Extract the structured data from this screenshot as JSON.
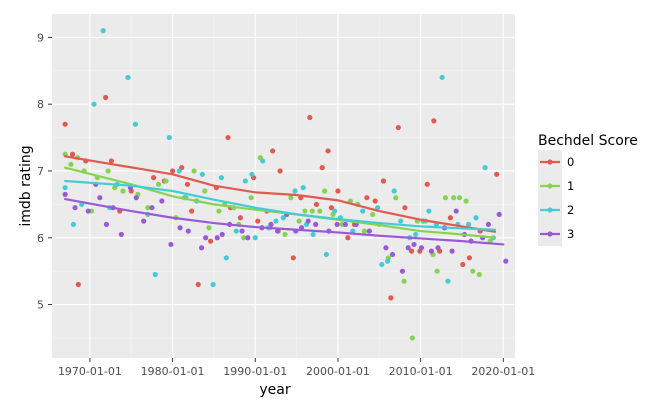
{
  "chart_data": {
    "type": "scatter",
    "xlabel": "year",
    "ylabel": "imdb rating",
    "x_range": [
      "1965-06-01",
      "2021-06-01"
    ],
    "ylim": [
      4.2,
      9.35
    ],
    "x_ticks": [
      {
        "date": "1970-01-01",
        "label": "1970-01-01"
      },
      {
        "date": "1980-01-01",
        "label": "1980-01-01"
      },
      {
        "date": "1990-01-01",
        "label": "1990-01-01"
      },
      {
        "date": "2000-01-01",
        "label": "2000-01-01"
      },
      {
        "date": "2010-01-01",
        "label": "2010-01-01"
      },
      {
        "date": "2020-01-01",
        "label": "2020-01-01"
      }
    ],
    "y_ticks": [
      5,
      6,
      7,
      8,
      9
    ],
    "grid": true,
    "legend": {
      "title": "Bechdel Score",
      "placement": "right"
    },
    "series": [
      {
        "name": "0",
        "color": "#e05a4f",
        "trend": [
          [
            1967.0,
            7.22
          ],
          [
            1980,
            6.95
          ],
          [
            1985,
            6.78
          ],
          [
            1990,
            6.68
          ],
          [
            1995,
            6.64
          ],
          [
            2000,
            6.56
          ],
          [
            2005,
            6.4
          ],
          [
            2010,
            6.27
          ],
          [
            2015,
            6.17
          ],
          [
            2019.0,
            6.09
          ]
        ],
        "points": [
          [
            1967.0,
            7.7
          ],
          [
            1967.9,
            7.25
          ],
          [
            1968.6,
            5.3
          ],
          [
            1969.5,
            7.15
          ],
          [
            1971.9,
            8.1
          ],
          [
            1972.6,
            7.15
          ],
          [
            1973.6,
            6.4
          ],
          [
            1975.0,
            6.7
          ],
          [
            1977.7,
            6.9
          ],
          [
            1979.0,
            6.85
          ],
          [
            1980.0,
            7.0
          ],
          [
            1981.1,
            7.05
          ],
          [
            1981.8,
            6.8
          ],
          [
            1982.3,
            6.4
          ],
          [
            1983.1,
            5.3
          ],
          [
            1984.6,
            5.95
          ],
          [
            1985.3,
            6.75
          ],
          [
            1986.7,
            7.5
          ],
          [
            1987.0,
            6.45
          ],
          [
            1988.2,
            6.3
          ],
          [
            1989.8,
            6.9
          ],
          [
            1990.3,
            6.25
          ],
          [
            1991.4,
            6.4
          ],
          [
            1992.1,
            7.3
          ],
          [
            1993.0,
            7.0
          ],
          [
            1994.6,
            5.7
          ],
          [
            1995.5,
            6.6
          ],
          [
            1996.6,
            7.8
          ],
          [
            1997.4,
            6.5
          ],
          [
            1998.1,
            7.05
          ],
          [
            1998.8,
            7.3
          ],
          [
            1999.2,
            6.45
          ],
          [
            2000.0,
            6.7
          ],
          [
            2001.2,
            6.0
          ],
          [
            2002.0,
            6.2
          ],
          [
            2003.5,
            6.6
          ],
          [
            2004.5,
            6.55
          ],
          [
            2005.5,
            6.85
          ],
          [
            2006.4,
            5.1
          ],
          [
            2007.3,
            7.65
          ],
          [
            2008.1,
            6.45
          ],
          [
            2008.9,
            5.8
          ],
          [
            2009.9,
            5.8
          ],
          [
            2010.8,
            6.8
          ],
          [
            2011.6,
            7.75
          ],
          [
            2012.3,
            5.8
          ],
          [
            2013.6,
            6.3
          ],
          [
            2015.1,
            5.6
          ],
          [
            2015.9,
            5.7
          ],
          [
            2017.2,
            6.1
          ],
          [
            2019.2,
            6.95
          ]
        ]
      },
      {
        "name": "1",
        "color": "#86d352",
        "trend": [
          [
            1967.0,
            7.05
          ],
          [
            1975,
            6.8
          ],
          [
            1980,
            6.62
          ],
          [
            1985,
            6.5
          ],
          [
            1990,
            6.42
          ],
          [
            1995,
            6.35
          ],
          [
            2000,
            6.27
          ],
          [
            2005,
            6.19
          ],
          [
            2010,
            6.1
          ],
          [
            2015,
            6.05
          ],
          [
            2019.0,
            6.0
          ]
        ],
        "points": [
          [
            1967.0,
            7.25
          ],
          [
            1967.7,
            7.1
          ],
          [
            1968.5,
            7.2
          ],
          [
            1969.3,
            7.0
          ],
          [
            1970.2,
            6.4
          ],
          [
            1970.9,
            6.9
          ],
          [
            1972.2,
            7.0
          ],
          [
            1973.0,
            6.75
          ],
          [
            1974.0,
            6.7
          ],
          [
            1975.8,
            6.65
          ],
          [
            1977.0,
            6.45
          ],
          [
            1978.3,
            6.8
          ],
          [
            1979.2,
            6.85
          ],
          [
            1980.4,
            6.3
          ],
          [
            1981.4,
            6.6
          ],
          [
            1982.6,
            7.0
          ],
          [
            1983.9,
            6.7
          ],
          [
            1984.4,
            6.15
          ],
          [
            1985.6,
            6.4
          ],
          [
            1986.3,
            6.5
          ],
          [
            1987.4,
            6.45
          ],
          [
            1988.0,
            6.2
          ],
          [
            1988.6,
            6.0
          ],
          [
            1989.5,
            6.6
          ],
          [
            1990.6,
            7.2
          ],
          [
            1991.8,
            6.15
          ],
          [
            1992.8,
            6.1
          ],
          [
            1993.6,
            6.05
          ],
          [
            1994.3,
            6.6
          ],
          [
            1995.3,
            6.25
          ],
          [
            1996.0,
            6.4
          ],
          [
            1996.9,
            6.4
          ],
          [
            1997.8,
            6.4
          ],
          [
            1998.4,
            6.7
          ],
          [
            1999.4,
            6.35
          ],
          [
            2000.5,
            6.2
          ],
          [
            2001.5,
            6.55
          ],
          [
            2002.4,
            6.5
          ],
          [
            2003.2,
            6.1
          ],
          [
            2004.2,
            6.35
          ],
          [
            2005.0,
            6.2
          ],
          [
            2006.1,
            5.7
          ],
          [
            2007.0,
            6.6
          ],
          [
            2008.0,
            5.35
          ],
          [
            2009.0,
            4.5
          ],
          [
            2009.6,
            6.25
          ],
          [
            2010.6,
            6.25
          ],
          [
            2011.5,
            5.75
          ],
          [
            2012.0,
            5.5
          ],
          [
            2013.0,
            6.6
          ],
          [
            2014.0,
            6.6
          ],
          [
            2014.7,
            6.6
          ],
          [
            2015.5,
            6.55
          ],
          [
            2016.3,
            5.5
          ],
          [
            2017.1,
            5.45
          ],
          [
            2018.4,
            5.95
          ]
        ]
      },
      {
        "name": "2",
        "color": "#46cbd4",
        "trend": [
          [
            1967.0,
            6.85
          ],
          [
            1975,
            6.78
          ],
          [
            1980,
            6.7
          ],
          [
            1985,
            6.57
          ],
          [
            1990,
            6.45
          ],
          [
            1995,
            6.35
          ],
          [
            2000,
            6.28
          ],
          [
            2005,
            6.22
          ],
          [
            2010,
            6.17
          ],
          [
            2015,
            6.14
          ],
          [
            2019.0,
            6.12
          ]
        ],
        "points": [
          [
            1967.0,
            6.75
          ],
          [
            1968.0,
            6.2
          ],
          [
            1969.0,
            6.5
          ],
          [
            1970.5,
            8.0
          ],
          [
            1971.6,
            9.1
          ],
          [
            1972.4,
            6.45
          ],
          [
            1973.3,
            6.8
          ],
          [
            1974.6,
            8.4
          ],
          [
            1975.5,
            7.7
          ],
          [
            1977.0,
            6.35
          ],
          [
            1977.9,
            5.45
          ],
          [
            1979.6,
            7.5
          ],
          [
            1980.8,
            7.0
          ],
          [
            1981.6,
            6.6
          ],
          [
            1982.9,
            6.55
          ],
          [
            1983.6,
            6.95
          ],
          [
            1984.9,
            5.3
          ],
          [
            1985.9,
            6.9
          ],
          [
            1986.5,
            5.7
          ],
          [
            1987.7,
            6.1
          ],
          [
            1988.8,
            6.85
          ],
          [
            1989.6,
            6.95
          ],
          [
            1990.0,
            6.0
          ],
          [
            1990.9,
            7.15
          ],
          [
            1991.6,
            6.15
          ],
          [
            1992.5,
            6.25
          ],
          [
            1993.4,
            6.3
          ],
          [
            1994.8,
            6.7
          ],
          [
            1995.8,
            6.75
          ],
          [
            1996.2,
            6.2
          ],
          [
            1997.0,
            6.05
          ],
          [
            1998.6,
            5.75
          ],
          [
            1999.6,
            6.4
          ],
          [
            2000.3,
            6.3
          ],
          [
            2001.8,
            6.1
          ],
          [
            2003.0,
            6.4
          ],
          [
            2004.8,
            6.45
          ],
          [
            2005.3,
            5.6
          ],
          [
            2006.0,
            5.65
          ],
          [
            2006.8,
            6.7
          ],
          [
            2007.6,
            6.25
          ],
          [
            2008.7,
            6.0
          ],
          [
            2009.4,
            6.05
          ],
          [
            2010.3,
            6.25
          ],
          [
            2011.0,
            6.4
          ],
          [
            2011.9,
            6.2
          ],
          [
            2012.6,
            8.4
          ],
          [
            2013.3,
            5.35
          ],
          [
            2014.5,
            6.2
          ],
          [
            2015.8,
            6.2
          ],
          [
            2016.7,
            6.3
          ],
          [
            2017.8,
            7.05
          ],
          [
            2018.8,
            6.0
          ]
        ]
      },
      {
        "name": "3",
        "color": "#9b59d6",
        "trend": [
          [
            1967.0,
            6.58
          ],
          [
            1975,
            6.4
          ],
          [
            1980,
            6.3
          ],
          [
            1985,
            6.22
          ],
          [
            1990,
            6.16
          ],
          [
            1995,
            6.12
          ],
          [
            2000,
            6.08
          ],
          [
            2005,
            6.03
          ],
          [
            2010,
            5.99
          ],
          [
            2015,
            5.95
          ],
          [
            2020.0,
            5.9
          ]
        ],
        "points": [
          [
            1967.0,
            6.65
          ],
          [
            1968.2,
            6.45
          ],
          [
            1969.8,
            6.4
          ],
          [
            1970.7,
            6.8
          ],
          [
            1971.2,
            6.6
          ],
          [
            1972.0,
            6.2
          ],
          [
            1972.8,
            6.45
          ],
          [
            1973.8,
            6.05
          ],
          [
            1974.9,
            6.75
          ],
          [
            1975.6,
            6.6
          ],
          [
            1976.5,
            6.25
          ],
          [
            1977.5,
            6.45
          ],
          [
            1978.7,
            6.55
          ],
          [
            1979.8,
            5.9
          ],
          [
            1980.9,
            6.15
          ],
          [
            1981.9,
            6.1
          ],
          [
            1983.5,
            5.85
          ],
          [
            1984.0,
            6.0
          ],
          [
            1985.4,
            6.0
          ],
          [
            1986.0,
            6.05
          ],
          [
            1986.9,
            6.2
          ],
          [
            1988.4,
            6.1
          ],
          [
            1989.1,
            6.0
          ],
          [
            1990.8,
            6.15
          ],
          [
            1991.9,
            6.2
          ],
          [
            1992.7,
            6.1
          ],
          [
            1993.8,
            6.35
          ],
          [
            1994.9,
            6.1
          ],
          [
            1995.6,
            6.15
          ],
          [
            1996.4,
            6.25
          ],
          [
            1997.3,
            6.2
          ],
          [
            1998.9,
            6.1
          ],
          [
            1999.9,
            6.2
          ],
          [
            2000.9,
            6.2
          ],
          [
            2002.2,
            6.2
          ],
          [
            2003.8,
            6.1
          ],
          [
            2005.8,
            5.85
          ],
          [
            2006.6,
            5.75
          ],
          [
            2007.8,
            5.5
          ],
          [
            2008.5,
            5.85
          ],
          [
            2009.2,
            5.9
          ],
          [
            2010.1,
            5.85
          ],
          [
            2011.3,
            5.8
          ],
          [
            2012.1,
            5.85
          ],
          [
            2012.9,
            6.15
          ],
          [
            2013.8,
            5.8
          ],
          [
            2014.3,
            6.4
          ],
          [
            2015.3,
            6.05
          ],
          [
            2016.1,
            5.95
          ],
          [
            2017.5,
            6.0
          ],
          [
            2018.2,
            6.2
          ],
          [
            2019.5,
            6.35
          ],
          [
            2020.3,
            5.65
          ]
        ]
      }
    ]
  }
}
